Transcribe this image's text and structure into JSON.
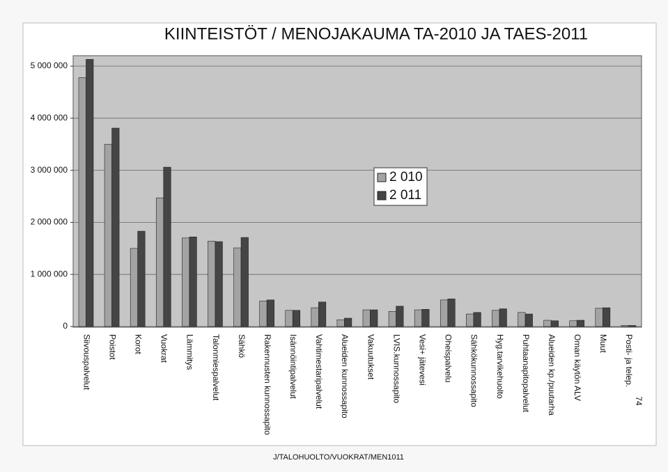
{
  "chart_data": {
    "type": "bar",
    "title": "KIINTEISTÖT / MENOJAKAUMA TA-2010 JA TAES-2011",
    "categories": [
      "Siivouspalvelut",
      "Poistot",
      "Korot",
      "Vuokrat",
      "Lämmitys",
      "Talonmiespalvelut",
      "Sähkö",
      "Rakennusten kunnossapito",
      "Isännöintipalvelut",
      "Vahtimestaripalvelut",
      "Alueiden kunnossapito",
      "Vakuutukset",
      "LVIS.kunnossapito",
      "Vesi+ jätevesi",
      "Oheispalvelu",
      "Sähkökunnossapito",
      "Hyg.tarvikehuolto",
      "Puhtaanapitopalvelut",
      "Alueiden kp./puutarha",
      "Oman käytön ALV",
      "Muut",
      "Posti- ja telep."
    ],
    "series": [
      {
        "name": "2 010",
        "color": "#a3a3a3",
        "values": [
          4780000,
          3500000,
          1500000,
          2470000,
          1700000,
          1640000,
          1510000,
          490000,
          310000,
          360000,
          130000,
          320000,
          290000,
          320000,
          510000,
          240000,
          310000,
          270000,
          120000,
          110000,
          350000,
          20000
        ]
      },
      {
        "name": "2 011",
        "color": "#454545",
        "values": [
          5130000,
          3810000,
          1830000,
          3060000,
          1720000,
          1630000,
          1710000,
          510000,
          310000,
          470000,
          160000,
          320000,
          390000,
          330000,
          530000,
          270000,
          340000,
          240000,
          110000,
          120000,
          360000,
          20000
        ]
      }
    ],
    "ylim": [
      0,
      5000000
    ],
    "yticks": [
      0,
      {
        "value": 1000000,
        "label": "1 000 000"
      },
      {
        "value": 2000000,
        "label": "2 000 000"
      },
      {
        "value": 3000000,
        "label": "3 000 000"
      },
      {
        "value": 4000000,
        "label": "4 000 000"
      },
      {
        "value": 5000000,
        "label": "5 000 000"
      }
    ],
    "grid": true,
    "footer": "J/TALOHUOLTO/VUOKRAT/MEN1011",
    "page_number": "74"
  }
}
